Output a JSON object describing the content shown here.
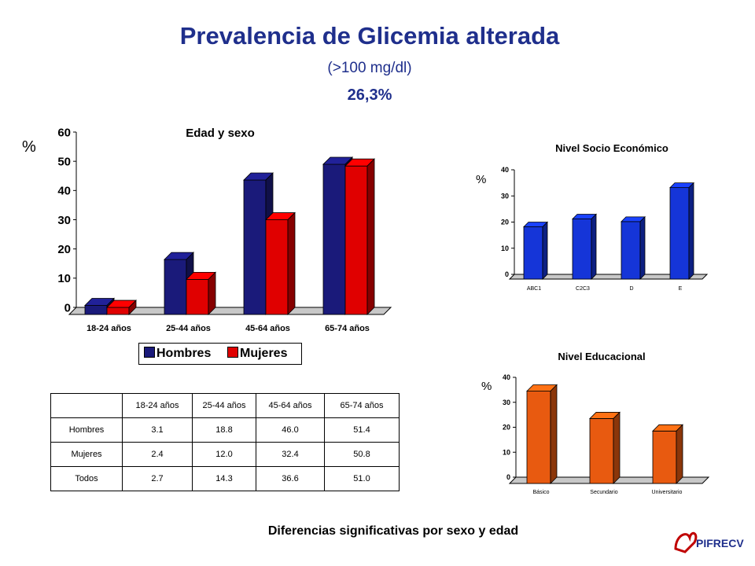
{
  "slide": {
    "title": "Prevalencia de Glicemia alterada",
    "subtitle": "(>100 mg/dl)",
    "total": "26,3%",
    "footnote": "Diferencias significativas por sexo y edad",
    "logo_text": "PIFRECV"
  },
  "colors": {
    "title": "#1f2f8c",
    "hombres": "#1a1a7a",
    "mujeres": "#e00000",
    "nse": "#1535d8",
    "educ": "#e85a10"
  },
  "chart_data": [
    {
      "id": "edad-sexo",
      "type": "bar",
      "title": "Edad y sexo",
      "ylabel": "%",
      "ylim": [
        0,
        60
      ],
      "yticks": [
        "0",
        "10",
        "20",
        "30",
        "40",
        "50",
        "60"
      ],
      "categories": [
        "18-24 años",
        "25-44 años",
        "45-64 años",
        "65-74 años"
      ],
      "series": [
        {
          "name": "Hombres",
          "values": [
            3.1,
            18.8,
            46.0,
            51.4
          ]
        },
        {
          "name": "Mujeres",
          "values": [
            2.4,
            12.0,
            32.4,
            50.8
          ]
        }
      ],
      "legend": "bottom"
    },
    {
      "id": "nse",
      "type": "bar",
      "title": "Nivel Socio Económico",
      "ylabel": "%",
      "ylim": [
        0,
        40
      ],
      "yticks": [
        "0",
        "10",
        "20",
        "30",
        "40"
      ],
      "categories": [
        "ABC1",
        "C2C3",
        "D",
        "E"
      ],
      "values": [
        20,
        23,
        22,
        35
      ]
    },
    {
      "id": "educ",
      "type": "bar",
      "title": "Nivel Educacional",
      "ylabel": "%",
      "ylim": [
        0,
        40
      ],
      "yticks": [
        "0",
        "10",
        "20",
        "30",
        "40"
      ],
      "categories": [
        "Básico",
        "Secundario",
        "Universitario"
      ],
      "values": [
        37,
        26,
        21
      ]
    }
  ],
  "table": {
    "columns": [
      "18-24 años",
      "25-44 años",
      "45-64 años",
      "65-74 años"
    ],
    "rows": [
      {
        "label": "Hombres",
        "values": [
          "3.1",
          "18.8",
          "46.0",
          "51.4"
        ]
      },
      {
        "label": "Mujeres",
        "values": [
          "2.4",
          "12.0",
          "32.4",
          "50.8"
        ]
      },
      {
        "label": "Todos",
        "values": [
          "2.7",
          "14.3",
          "36.6",
          "51.0"
        ]
      }
    ]
  }
}
